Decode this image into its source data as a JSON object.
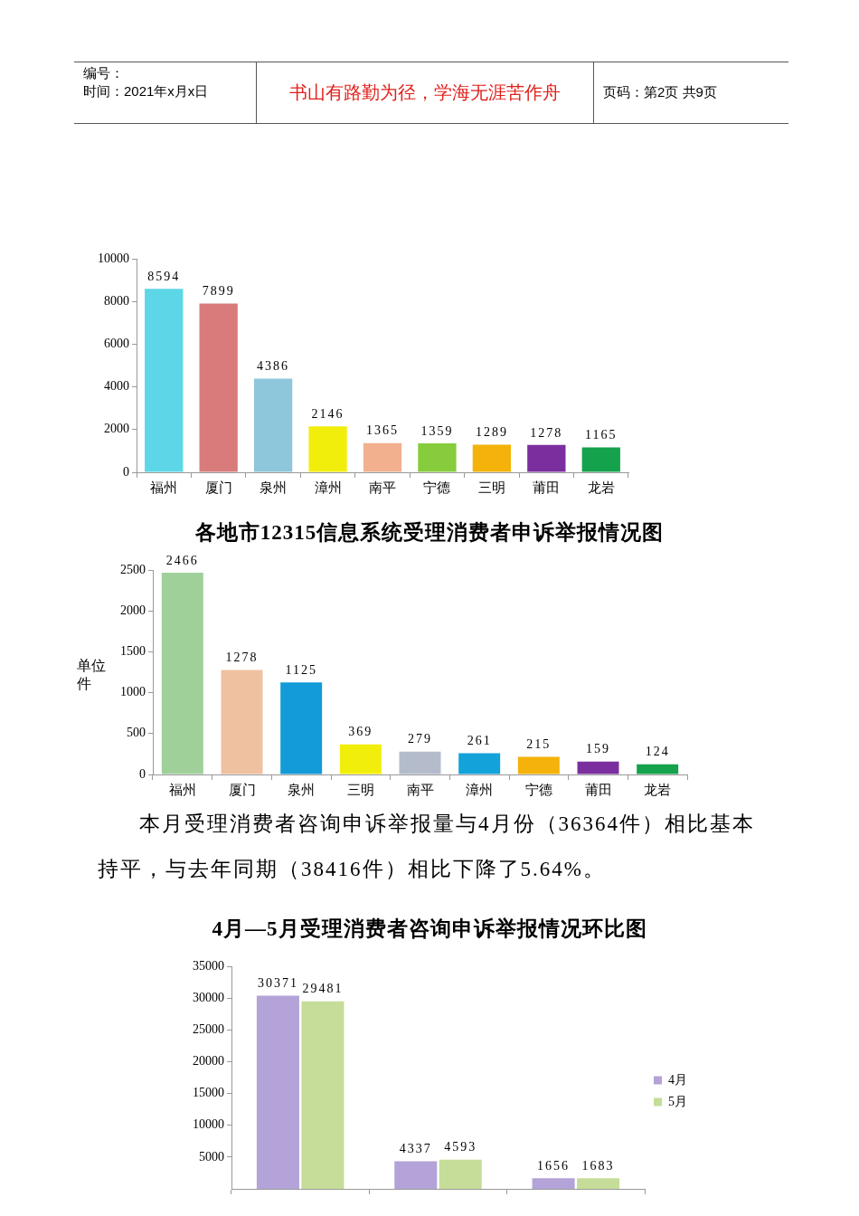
{
  "chart_data": [
    {
      "type": "bar",
      "categories": [
        "福州",
        "厦门",
        "泉州",
        "漳州",
        "南平",
        "宁德",
        "三明",
        "莆田",
        "龙岩"
      ],
      "values": [
        8594,
        7899,
        4386,
        2146,
        1365,
        1359,
        1289,
        1278,
        1165
      ],
      "colors": [
        "#5dd6e8",
        "#d97b7b",
        "#8ec6dc",
        "#f2ee0c",
        "#f2b08e",
        "#86cc3c",
        "#f4b20a",
        "#7b2f9f",
        "#15a24c"
      ],
      "ylim": [
        0,
        10000
      ],
      "yticks": [
        0,
        2000,
        4000,
        6000,
        8000,
        10000
      ],
      "data_labels": true,
      "annotations": [
        "编号：",
        "时间：2021年x月x日",
        "书山有路勤为径，学海无涯苦作舟",
        "页码：第2页 共9页"
      ]
    },
    {
      "type": "bar",
      "title": "各地市12315信息系统受理消费者申诉举报情况图",
      "ylabel": "单位件",
      "categories": [
        "福州",
        "厦门",
        "泉州",
        "三明",
        "南平",
        "漳州",
        "宁德",
        "莆田",
        "龙岩"
      ],
      "values": [
        2466,
        1278,
        1125,
        369,
        279,
        261,
        215,
        159,
        124
      ],
      "colors": [
        "#9fd09a",
        "#f0c1a0",
        "#129bd8",
        "#f2ee0c",
        "#b4bccb",
        "#14a2da",
        "#f4b20a",
        "#7b2f9f",
        "#15a24c"
      ],
      "ylim": [
        0,
        2500
      ],
      "yticks": [
        0,
        500,
        1000,
        1500,
        2000,
        2500
      ],
      "data_labels": true,
      "annotations": [
        "本月受理消费者咨询申诉举报量与4月份（36364件）相比基本持平，与去年同期（38416件）相比下降了5.64%。"
      ]
    },
    {
      "type": "bar",
      "title": "4月—5月受理消费者咨询申诉举报情况环比图",
      "categories": [
        null,
        null,
        null
      ],
      "series": [
        {
          "name": "4月",
          "color": "#b3a3d8",
          "values": [
            30371,
            4337,
            1656
          ]
        },
        {
          "name": "5月",
          "color": "#c5dd98",
          "values": [
            29481,
            4593,
            1683
          ]
        }
      ],
      "ylim": [
        0,
        35000
      ],
      "yticks": [
        5000,
        10000,
        15000,
        20000,
        25000,
        30000,
        35000
      ],
      "data_labels": true,
      "legend": "right"
    }
  ]
}
